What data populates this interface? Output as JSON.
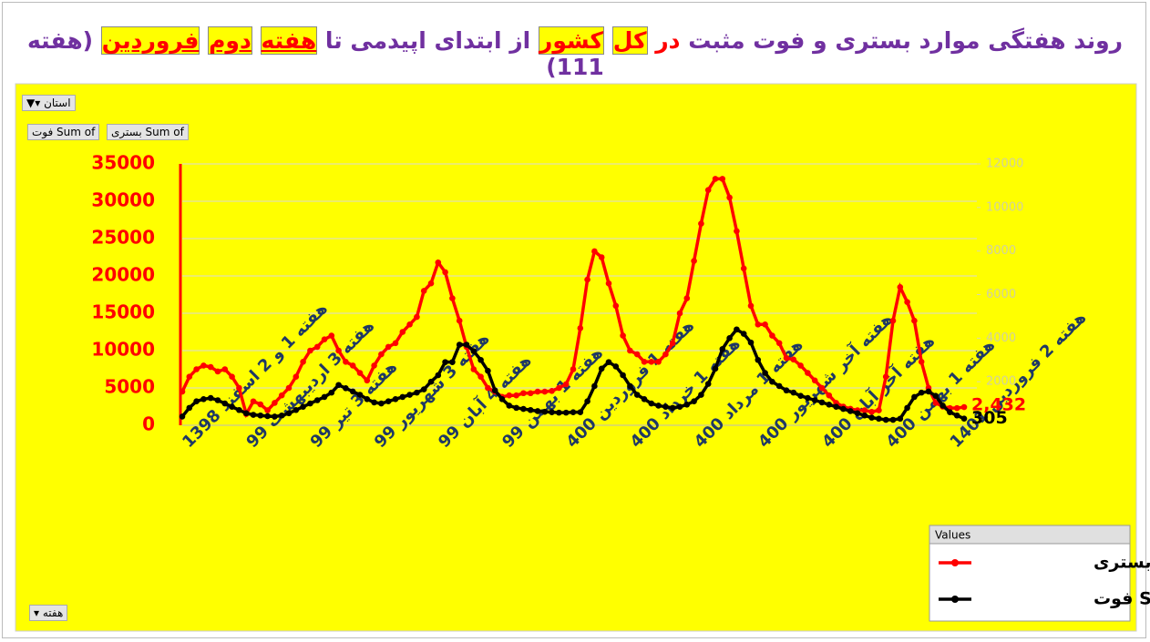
{
  "title_parts": [
    "روند هفتگی موارد بستری و فوت مثبت ",
    "در",
    " ",
    "کل",
    " ",
    "کشور",
    " از ابتدای اپیدمی تا ",
    "هفته",
    " ",
    "دوم",
    " ",
    "فروردین",
    " (هفته 111)"
  ],
  "filters": {
    "province": "استان",
    "value_buttons": [
      "Sum of بستری",
      "Sum of فوت"
    ],
    "axis_button": "هفته"
  },
  "chart_data": {
    "type": "line",
    "legend_title": "Values",
    "legend": "bottom-right",
    "grid": true,
    "categories": [
      "هفته 1 و 2 اسفند 1398",
      null,
      null,
      null,
      null,
      null,
      null,
      null,
      null,
      "هفته 3 اردیبهشت 99",
      null,
      null,
      null,
      null,
      null,
      null,
      null,
      null,
      "هفته 3 تیر 99",
      null,
      null,
      null,
      null,
      null,
      null,
      null,
      null,
      "هفته 3 شهریور 99",
      null,
      null,
      null,
      null,
      null,
      null,
      null,
      null,
      "هفته 4 آبان 99",
      null,
      null,
      null,
      null,
      null,
      null,
      null,
      null,
      "هفته 1 بهمن 99",
      null,
      null,
      null,
      null,
      null,
      null,
      null,
      null,
      "هفته 1 فروردین 400",
      null,
      null,
      null,
      null,
      null,
      null,
      null,
      null,
      "هفته 1 خرداد 400",
      null,
      null,
      null,
      null,
      null,
      null,
      null,
      null,
      "هفته 1 مرداد 400",
      null,
      null,
      null,
      null,
      null,
      null,
      null,
      null,
      "هفته آخر شهریور 400",
      null,
      null,
      null,
      null,
      null,
      null,
      null,
      null,
      "هفته آخر آبان 400",
      null,
      null,
      null,
      null,
      null,
      null,
      null,
      null,
      "هفته 1 بهمن 400",
      null,
      null,
      null,
      null,
      null,
      null,
      null,
      null,
      "هفته 2 فروردین 1401",
      null,
      null
    ],
    "ylim": [
      0,
      35000
    ],
    "yticks": [
      0,
      5000,
      10000,
      15000,
      20000,
      25000,
      30000,
      35000
    ],
    "y2lim": [
      0,
      12000
    ],
    "y2ticks": [
      2000,
      4000,
      6000,
      8000,
      10000,
      12000
    ],
    "series": [
      {
        "name": "Sum of بستری",
        "color": "#ff0000",
        "values": [
          4500,
          6500,
          7500,
          8000,
          7800,
          7200,
          7500,
          6500,
          5000,
          1500,
          3200,
          2800,
          2000,
          3000,
          4000,
          5000,
          6500,
          8500,
          10000,
          10500,
          11500,
          12000,
          10000,
          8500,
          8000,
          7000,
          6000,
          8000,
          9500,
          10500,
          11000,
          12500,
          13500,
          14500,
          18000,
          19000,
          21800,
          20500,
          17000,
          14000,
          10500,
          7500,
          6500,
          5000,
          4500,
          3800,
          4000,
          4000,
          4300,
          4300,
          4500,
          4500,
          4600,
          5000,
          5500,
          7500,
          13000,
          19500,
          23300,
          22500,
          19000,
          16000,
          12000,
          10000,
          9500,
          8500,
          8500,
          8500,
          9500,
          11000,
          15000,
          17000,
          22000,
          27000,
          31500,
          33000,
          33000,
          30500,
          26000,
          21000,
          16000,
          13500,
          13500,
          12000,
          11000,
          9000,
          8800,
          8000,
          7000,
          6000,
          5000,
          4000,
          3000,
          2500,
          2200,
          2000,
          2000,
          1800,
          2000,
          6500,
          14000,
          18500,
          16500,
          14000,
          8500,
          5000,
          3000,
          2500,
          2300,
          2300,
          2432
        ],
        "value_labels": [
          null,
          null,
          null,
          null,
          null,
          null,
          null,
          null,
          null,
          null,
          null,
          null,
          null,
          null,
          null,
          null,
          null,
          null,
          null,
          null,
          null,
          null,
          null,
          null,
          null,
          null,
          null,
          null,
          null,
          null,
          null,
          null,
          null,
          null,
          null,
          null,
          null,
          null,
          null,
          null,
          null,
          null,
          null,
          null,
          null,
          null,
          null,
          null,
          null,
          null,
          null,
          null,
          null,
          null,
          null,
          null,
          null,
          null,
          null,
          null,
          null,
          null,
          null,
          null,
          null,
          null,
          null,
          null,
          null,
          null,
          null,
          null,
          null,
          null,
          null,
          null,
          null,
          null,
          null,
          null,
          null,
          null,
          null,
          null,
          null,
          null,
          null,
          null,
          null,
          null,
          null,
          null,
          null,
          null,
          null,
          null,
          null,
          null,
          null,
          null,
          null,
          null,
          null,
          null,
          null,
          null,
          null,
          null,
          null,
          null,
          "2,432"
        ]
      },
      {
        "name": "Sum of فوت",
        "color": "#000000",
        "axis": "y2",
        "values": [
          400,
          800,
          1100,
          1200,
          1250,
          1150,
          1000,
          850,
          700,
          550,
          480,
          450,
          420,
          400,
          450,
          550,
          700,
          850,
          1000,
          1150,
          1300,
          1500,
          1850,
          1700,
          1550,
          1400,
          1200,
          1050,
          1000,
          1100,
          1200,
          1300,
          1400,
          1500,
          1650,
          2000,
          2300,
          2900,
          2900,
          3700,
          3700,
          3400,
          3000,
          2500,
          1600,
          1200,
          900,
          800,
          750,
          700,
          650,
          620,
          600,
          580,
          580,
          600,
          600,
          1100,
          1800,
          2600,
          2900,
          2700,
          2300,
          1800,
          1400,
          1200,
          1000,
          900,
          850,
          800,
          850,
          950,
          1100,
          1400,
          1900,
          2600,
          3500,
          4000,
          4400,
          4200,
          3800,
          3000,
          2400,
          2000,
          1800,
          1600,
          1500,
          1350,
          1250,
          1150,
          1050,
          950,
          850,
          750,
          650,
          550,
          450,
          350,
          300,
          250,
          250,
          300,
          800,
          1300,
          1500,
          1550,
          1350,
          900,
          600,
          450,
          305
        ],
        "value_labels": [
          null,
          null,
          null,
          null,
          null,
          null,
          null,
          null,
          null,
          null,
          null,
          null,
          null,
          null,
          null,
          null,
          null,
          null,
          null,
          null,
          null,
          null,
          null,
          null,
          null,
          null,
          null,
          null,
          null,
          null,
          null,
          null,
          null,
          null,
          null,
          null,
          null,
          null,
          null,
          null,
          null,
          null,
          null,
          null,
          null,
          null,
          null,
          null,
          null,
          null,
          null,
          null,
          null,
          null,
          null,
          null,
          null,
          null,
          null,
          null,
          null,
          null,
          null,
          null,
          null,
          null,
          null,
          null,
          null,
          null,
          null,
          null,
          null,
          null,
          null,
          null,
          null,
          null,
          null,
          null,
          null,
          null,
          null,
          null,
          null,
          null,
          null,
          null,
          null,
          null,
          null,
          null,
          null,
          null,
          null,
          null,
          null,
          null,
          null,
          null,
          null,
          null,
          null,
          null,
          null,
          null,
          null,
          null,
          null,
          null,
          "305"
        ]
      }
    ]
  }
}
